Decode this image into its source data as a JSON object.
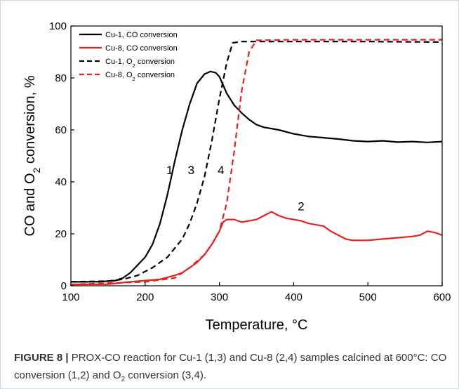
{
  "chart_data": {
    "type": "line",
    "xlabel": "Temperature, °C",
    "ylabel_parts": [
      "CO and O",
      "2",
      " conversion, %"
    ],
    "xlim": [
      100,
      600
    ],
    "ylim": [
      0,
      100
    ],
    "x_ticks": [
      100,
      200,
      300,
      400,
      500,
      600
    ],
    "y_ticks": [
      0,
      20,
      40,
      60,
      80,
      100
    ],
    "grid": false,
    "legend_position": "top-left",
    "series": [
      {
        "name": "Cu-1, CO conversion",
        "name_parts": [
          "Cu-1, CO conversion"
        ],
        "label": "1",
        "label_at": [
          233,
          43
        ],
        "color": "#000000",
        "dash": "solid",
        "points": [
          [
            100,
            1.5
          ],
          [
            120,
            1.5
          ],
          [
            140,
            1.6
          ],
          [
            160,
            2
          ],
          [
            170,
            3
          ],
          [
            180,
            5
          ],
          [
            190,
            8
          ],
          [
            200,
            11
          ],
          [
            210,
            16
          ],
          [
            220,
            24
          ],
          [
            230,
            35
          ],
          [
            240,
            48
          ],
          [
            250,
            60
          ],
          [
            260,
            70
          ],
          [
            270,
            78
          ],
          [
            280,
            81.5
          ],
          [
            288,
            82.5
          ],
          [
            295,
            82
          ],
          [
            300,
            80.5
          ],
          [
            310,
            74
          ],
          [
            320,
            69.5
          ],
          [
            330,
            66.5
          ],
          [
            340,
            64
          ],
          [
            350,
            62
          ],
          [
            360,
            61
          ],
          [
            380,
            60
          ],
          [
            400,
            58.5
          ],
          [
            420,
            57.5
          ],
          [
            440,
            57
          ],
          [
            460,
            56.5
          ],
          [
            480,
            55.8
          ],
          [
            500,
            55.5
          ],
          [
            520,
            55.8
          ],
          [
            540,
            55.3
          ],
          [
            560,
            55.5
          ],
          [
            580,
            55.2
          ],
          [
            600,
            55.5
          ]
        ]
      },
      {
        "name": "Cu-8, CO conversion",
        "name_parts": [
          "Cu-8, CO conversion"
        ],
        "label": "2",
        "label_at": [
          410,
          29
        ],
        "color": "#e8211e",
        "dash": "solid",
        "points": [
          [
            100,
            0.5
          ],
          [
            150,
            0.6
          ],
          [
            180,
            1.5
          ],
          [
            200,
            2
          ],
          [
            220,
            2.5
          ],
          [
            240,
            4
          ],
          [
            250,
            5
          ],
          [
            260,
            7
          ],
          [
            270,
            9
          ],
          [
            280,
            12
          ],
          [
            290,
            16
          ],
          [
            300,
            21
          ],
          [
            305,
            24.5
          ],
          [
            310,
            25.5
          ],
          [
            320,
            25.5
          ],
          [
            330,
            24.5
          ],
          [
            340,
            25
          ],
          [
            350,
            25.5
          ],
          [
            360,
            27
          ],
          [
            370,
            28.5
          ],
          [
            380,
            27
          ],
          [
            390,
            26
          ],
          [
            400,
            25.5
          ],
          [
            410,
            25
          ],
          [
            420,
            24
          ],
          [
            430,
            23.5
          ],
          [
            440,
            23
          ],
          [
            450,
            21
          ],
          [
            460,
            19.5
          ],
          [
            470,
            18
          ],
          [
            480,
            17.5
          ],
          [
            500,
            17.5
          ],
          [
            520,
            18
          ],
          [
            540,
            18.5
          ],
          [
            560,
            19
          ],
          [
            570,
            19.5
          ],
          [
            580,
            21
          ],
          [
            590,
            20.5
          ],
          [
            600,
            19.5
          ]
        ]
      },
      {
        "name": "Cu-1, O2 conversion",
        "name_parts": [
          "Cu-1, O",
          "2",
          " conversion"
        ],
        "label": "3",
        "label_at": [
          262,
          43
        ],
        "color": "#000000",
        "dash": "dashed",
        "points": [
          [
            100,
            1.5
          ],
          [
            150,
            1.8
          ],
          [
            170,
            2.5
          ],
          [
            190,
            4
          ],
          [
            210,
            7
          ],
          [
            230,
            11
          ],
          [
            250,
            18
          ],
          [
            260,
            24
          ],
          [
            270,
            32
          ],
          [
            280,
            42
          ],
          [
            290,
            56
          ],
          [
            300,
            72
          ],
          [
            310,
            86
          ],
          [
            318,
            93.5
          ],
          [
            330,
            94
          ],
          [
            400,
            94
          ],
          [
            500,
            94
          ],
          [
            600,
            93.8
          ]
        ]
      },
      {
        "name": "Cu-8, O2 conversion",
        "name_parts": [
          "Cu-8, O",
          "2",
          " conversion"
        ],
        "label": "4",
        "label_at": [
          302,
          43
        ],
        "color": "#e8211e",
        "dash": "dashed",
        "points": [
          [
            100,
            0.5
          ],
          [
            200,
            1.5
          ],
          [
            240,
            3
          ],
          [
            260,
            7
          ],
          [
            280,
            12
          ],
          [
            290,
            16
          ],
          [
            300,
            21
          ],
          [
            310,
            32
          ],
          [
            320,
            52
          ],
          [
            330,
            75
          ],
          [
            340,
            90
          ],
          [
            350,
            94.5
          ],
          [
            400,
            94.7
          ],
          [
            500,
            94.7
          ],
          [
            600,
            94.7
          ]
        ]
      }
    ]
  },
  "caption": {
    "lead": "FIGURE 8 |",
    "part1": " PROX-CO reaction for Cu-1 (1,3) and Cu-8 (2,4) samples calcined at 600°C: CO conversion (1,2) and O",
    "sub": "2",
    "part2": " conversion (3,4)."
  }
}
